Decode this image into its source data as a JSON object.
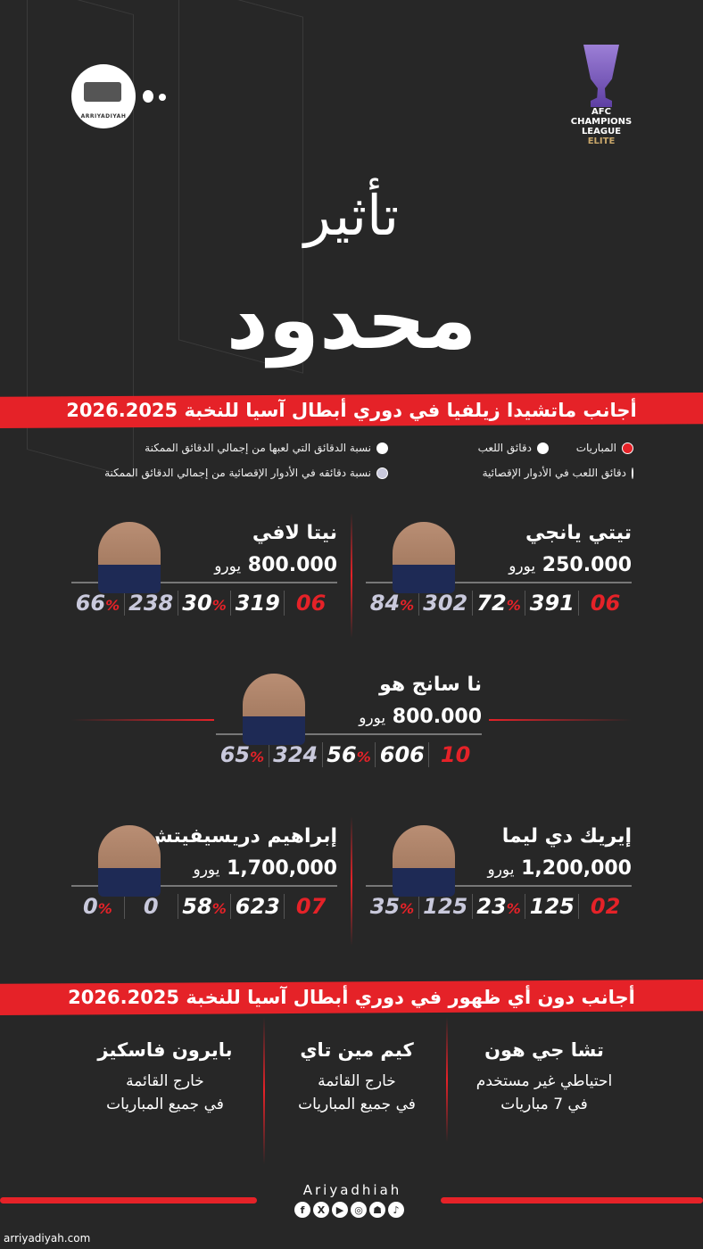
{
  "brand_logo": {
    "text": "ARRIYADIYAH"
  },
  "competition_logo": {
    "line1": "AFC",
    "line2": "CHAMPIONS",
    "line3": "LEAGUE",
    "line4": "ELITE",
    "color": "#8a6bc9"
  },
  "title": {
    "line1": "تأثير",
    "line2": "محدود"
  },
  "section1": {
    "heading": "أجانب ماتشيدا زيلفيا في دوري أبطال آسيا للنخبة 2026.2025"
  },
  "legend": [
    {
      "label": "المباريات",
      "color": "#e52228"
    },
    {
      "label": "دقائق اللعب",
      "color": "#ffffff"
    },
    {
      "label": "نسبة الدقائق التي لعبها من إجمالي الدقائق الممكنة",
      "color": "#ffffff"
    },
    {
      "label": "دقائق اللعب في الأدوار الإقصائية",
      "color": "#c9c9dc"
    },
    {
      "label": "",
      "color": ""
    },
    {
      "label": "نسبة دقائقه في الأدوار الإقصائية من إجمالي الدقائق الممكنة",
      "color": "#c9c9dc"
    }
  ],
  "currency": "يورو",
  "percent_sign": "%",
  "players": [
    {
      "name": "تيتي يانجي",
      "value": "250.000",
      "matches": "06",
      "minutes": "391",
      "pct": "72",
      "ko_minutes": "302",
      "ko_pct": "84"
    },
    {
      "name": "نيتا لافي",
      "value": "800.000",
      "matches": "06",
      "minutes": "319",
      "pct": "30",
      "ko_minutes": "238",
      "ko_pct": "66"
    },
    {
      "name": "نا سانج هو",
      "value": "800.000",
      "matches": "10",
      "minutes": "606",
      "pct": "56",
      "ko_minutes": "324",
      "ko_pct": "65"
    },
    {
      "name": "إيريك دي ليما",
      "value": "1,200,000",
      "matches": "02",
      "minutes": "125",
      "pct": "23",
      "ko_minutes": "125",
      "ko_pct": "35"
    },
    {
      "name": "إبراهيم دريسيفيتش",
      "value": "1,700,000",
      "matches": "07",
      "minutes": "623",
      "pct": "58",
      "ko_minutes": "0",
      "ko_pct": "0"
    }
  ],
  "section2": {
    "heading": "أجانب دون أي ظهور في دوري أبطال آسيا للنخبة 2026.2025"
  },
  "unused": [
    {
      "name": "تشا جي هون",
      "line1": "احتياطي غير مستخدم",
      "line2": "في 7 مباريات"
    },
    {
      "name": "كيم مين تاي",
      "line1": "خارج القائمة",
      "line2": "في جميع المباريات"
    },
    {
      "name": "بايرون فاسكيز",
      "line1": "خارج القائمة",
      "line2": "في جميع المباريات"
    }
  ],
  "footer": {
    "brand": "Ariyadhiah",
    "social": [
      "facebook-icon",
      "x-icon",
      "youtube-icon",
      "instagram-icon",
      "snapchat-icon",
      "tiktok-icon"
    ],
    "website": "arriyadiyah.com"
  },
  "accent": "#e52228"
}
